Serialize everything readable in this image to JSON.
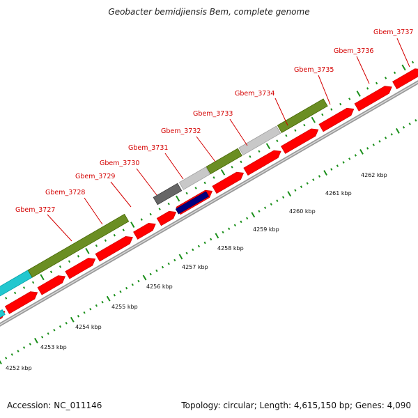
{
  "title": "Geobacter bemidjiensis Bem, complete genome",
  "footer": {
    "accession": "Accession: NC_011146",
    "summary": "Topology: circular; Length: 4,615,150 bp; Genes: 4,090"
  },
  "colors": {
    "cds": "#ff0000",
    "cds_green": "#6b8e23",
    "cyan": "#22c7cf",
    "gray_light": "#c8c8c8",
    "gray_dark": "#666666",
    "navy": "#000080",
    "backbone": "#888888",
    "tick_green": "#1a8f1a",
    "label_red": "#d40000"
  },
  "gene_labels": [
    "Gbem_3727",
    "Gbem_3728",
    "Gbem_3729",
    "Gbem_3730",
    "Gbem_3731",
    "Gbem_3732",
    "Gbem_3733",
    "Gbem_3734",
    "Gbem_3735",
    "Gbem_3736",
    "Gbem_3737"
  ],
  "kbp_labels": [
    "4252 kbp",
    "4253 kbp",
    "4254 kbp",
    "4255 kbp",
    "4256 kbp",
    "4257 kbp",
    "4258 kbp",
    "4259 kbp",
    "4260 kbp",
    "4261 kbp",
    "4262 kbp"
  ]
}
